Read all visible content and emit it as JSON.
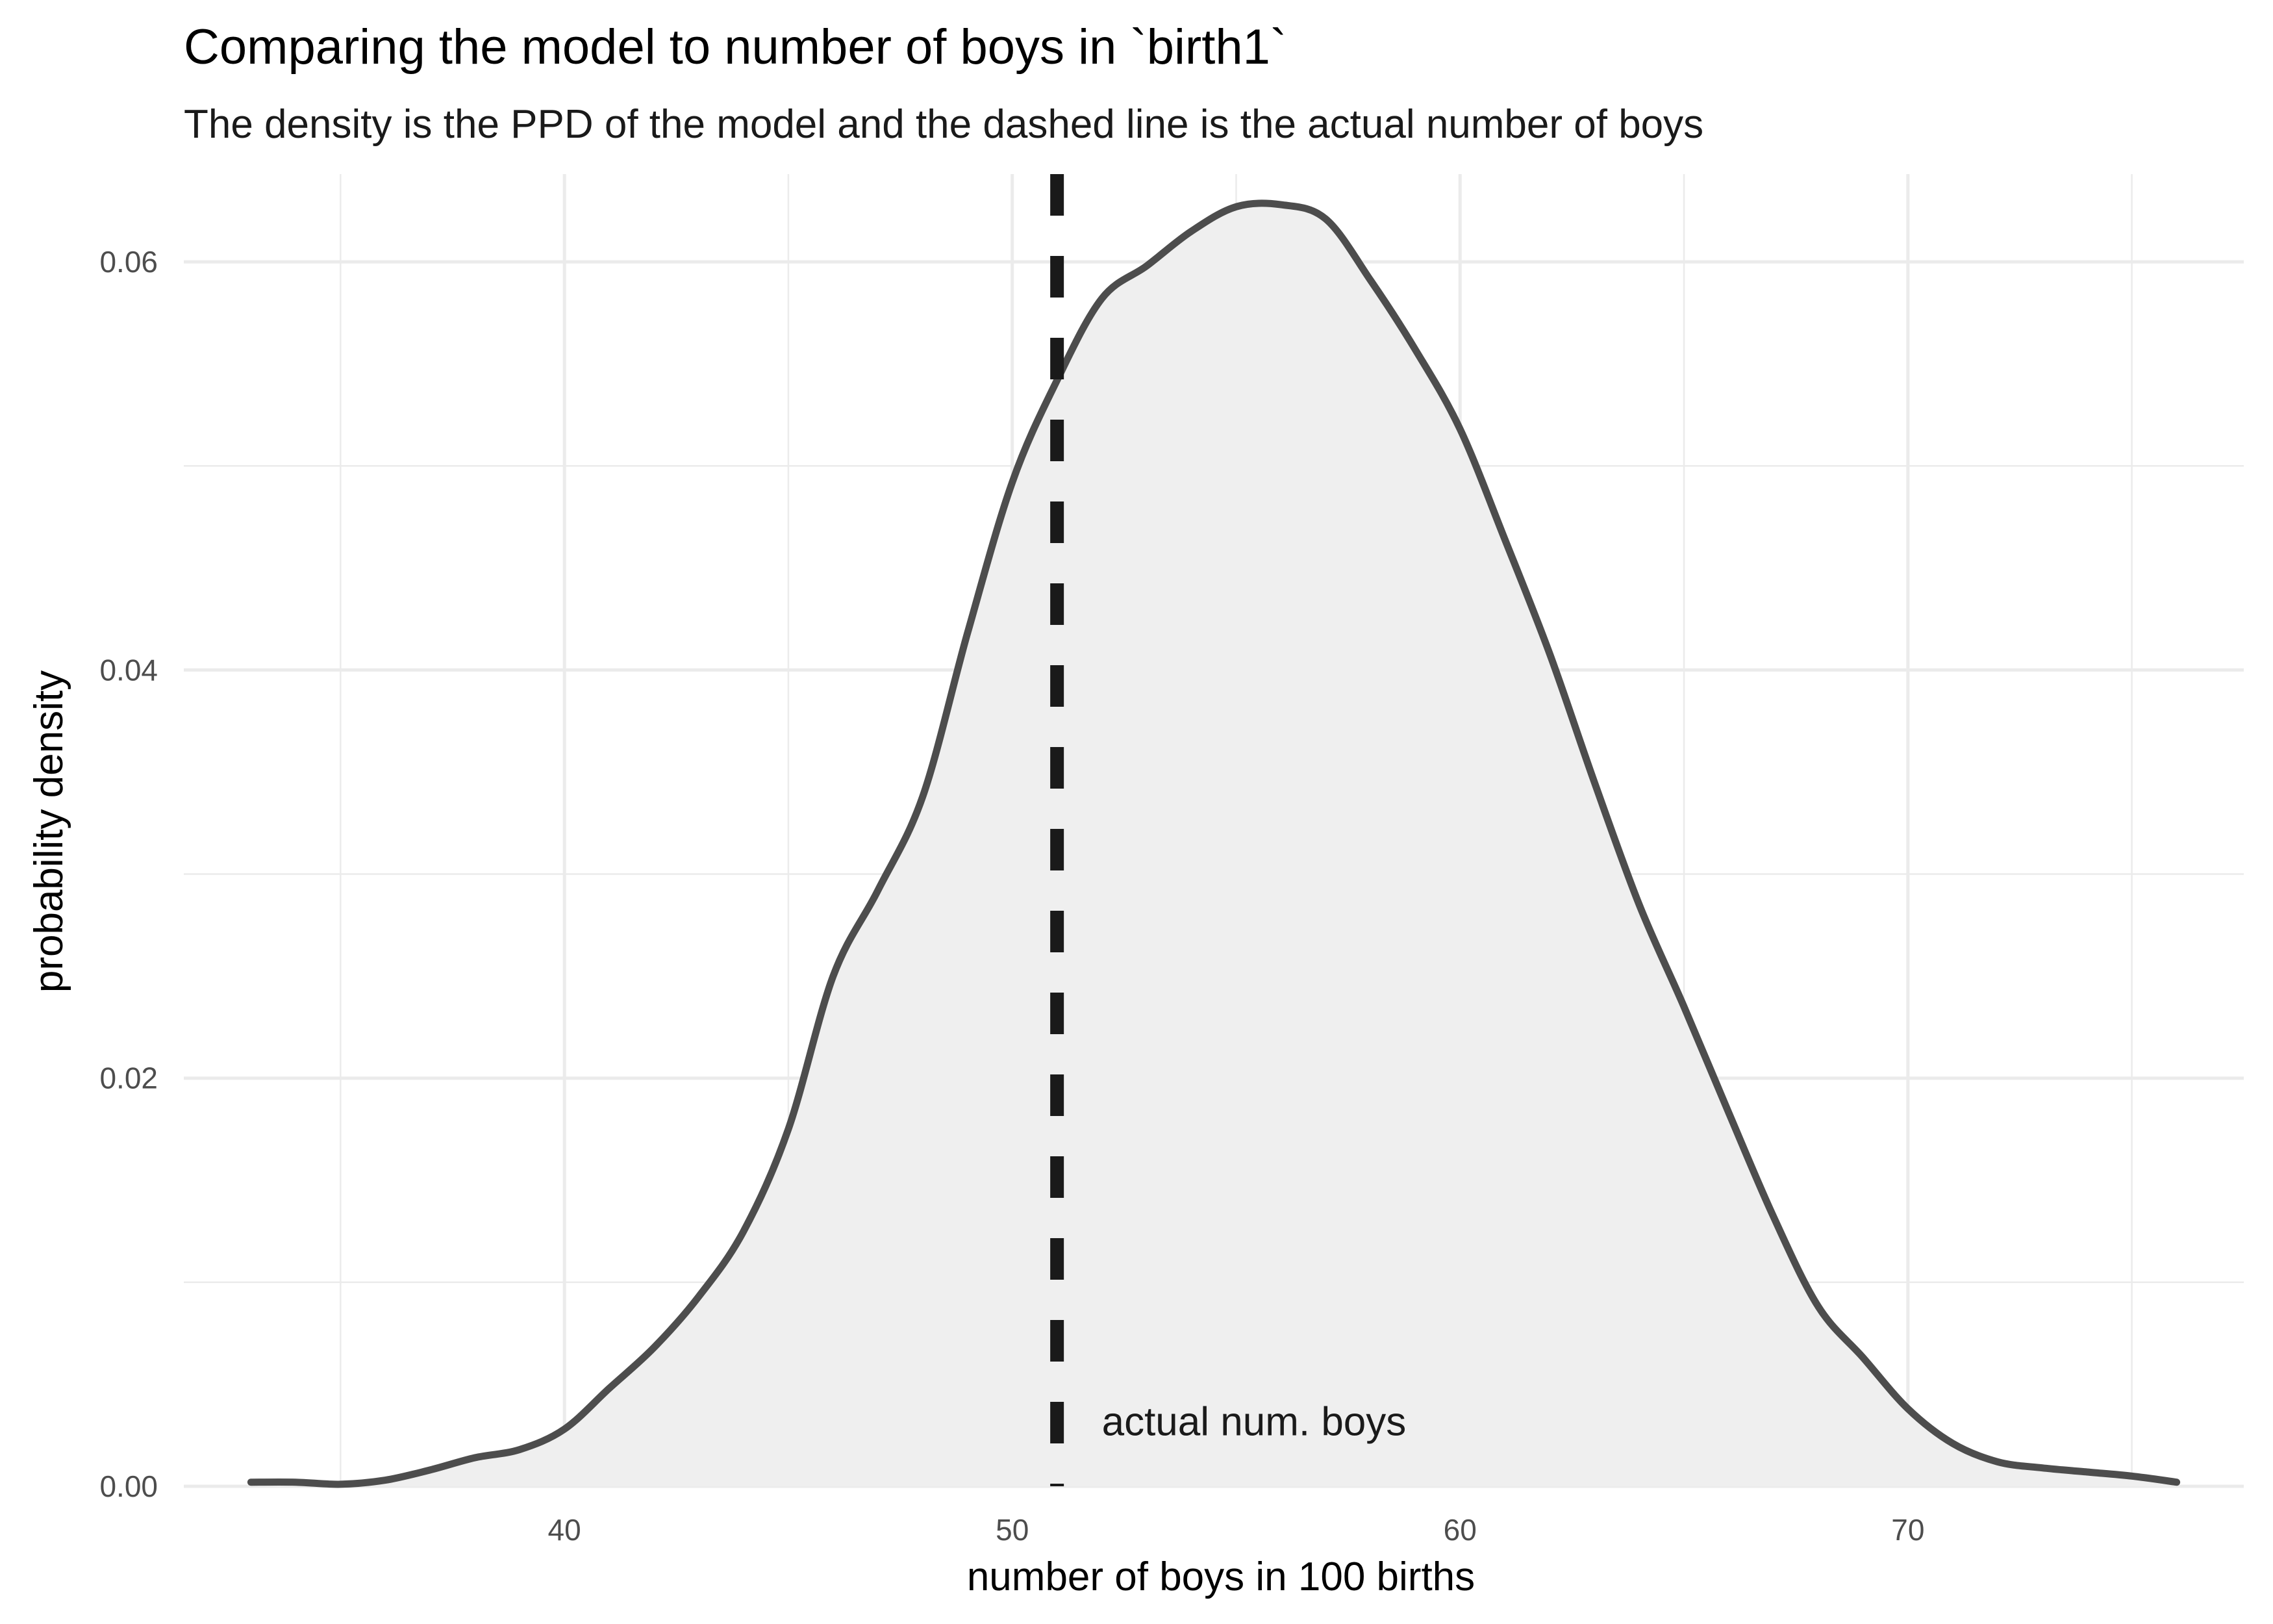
{
  "chart_data": {
    "type": "area",
    "title": "Comparing the model to number of boys in `birth1`",
    "subtitle": "The density is the PPD of the model and the dashed line is the actual number of boys",
    "xlabel": "number of boys in 100 births",
    "ylabel": "probability density",
    "xlim": [
      31.5,
      77.5
    ],
    "ylim": [
      0,
      0.0643
    ],
    "x_ticks": [
      40,
      50,
      60,
      70
    ],
    "x_tick_labels": [
      "40",
      "50",
      "60",
      "70"
    ],
    "x_minor_ticks": [
      35,
      45,
      55,
      65,
      75
    ],
    "y_ticks": [
      0,
      0.02,
      0.04,
      0.06
    ],
    "y_tick_labels": [
      "0.00",
      "0.02",
      "0.04",
      "0.06"
    ],
    "y_minor_ticks": [
      0.01,
      0.03,
      0.05
    ],
    "grid": true,
    "legend": "none",
    "series": [
      {
        "x": [
          33,
          34,
          35,
          36,
          37,
          38,
          39,
          40,
          41,
          42,
          43,
          44,
          45,
          46,
          47,
          48,
          49,
          50,
          51,
          52,
          53,
          54,
          55,
          56,
          57,
          58,
          59,
          60,
          61,
          62,
          63,
          64,
          65,
          66,
          67,
          68,
          69,
          70,
          71,
          72,
          73,
          74,
          75,
          76
        ],
        "y": [
          0.0002,
          0.0002,
          0.0001,
          0.0003,
          0.0008,
          0.0014,
          0.0018,
          0.0028,
          0.0048,
          0.0068,
          0.0093,
          0.0125,
          0.0175,
          0.025,
          0.0292,
          0.0338,
          0.0418,
          0.0492,
          0.0542,
          0.0582,
          0.0598,
          0.0615,
          0.0627,
          0.0628,
          0.0621,
          0.0591,
          0.0557,
          0.0518,
          0.0464,
          0.0408,
          0.0345,
          0.0285,
          0.0235,
          0.0183,
          0.0132,
          0.0088,
          0.0063,
          0.0038,
          0.0021,
          0.0012,
          0.0009,
          0.0007,
          0.0005,
          0.0002
        ],
        "fill_color": "#efefef",
        "line_color": "#4d4d4d"
      }
    ],
    "reference_line": {
      "x": 51,
      "style": "dashed",
      "color": "#1a1a1a",
      "label": "actual num. boys",
      "label_x": 52,
      "label_y": 0.0025
    },
    "colors": {
      "grid": "#ebebeb",
      "background": "#ffffff"
    }
  }
}
